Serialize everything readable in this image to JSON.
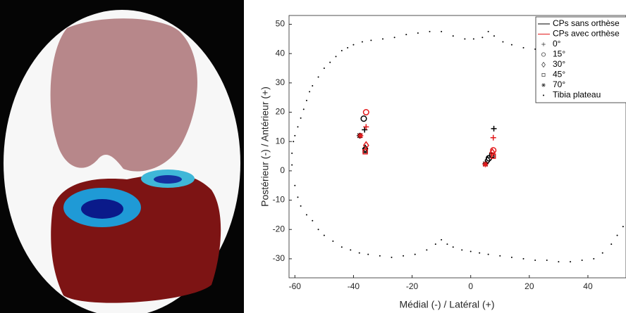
{
  "chart_data": {
    "type": "scatter",
    "xlabel": "Médial (-) / Latéral (+)",
    "ylabel": "Postérieur (-) / Antérieur (+)",
    "xlim": [
      -62,
      53
    ],
    "ylim": [
      -36.5,
      53
    ],
    "xticks": [
      -60,
      -40,
      -20,
      0,
      20,
      40
    ],
    "yticks": [
      -30,
      -20,
      -10,
      0,
      10,
      20,
      30,
      40,
      50
    ],
    "legend": "upper right",
    "markers": [
      {
        "name": "0°",
        "symbol": "plus"
      },
      {
        "name": "15°",
        "symbol": "circle"
      },
      {
        "name": "30°",
        "symbol": "diamond"
      },
      {
        "name": "45°",
        "symbol": "square"
      },
      {
        "name": "70°",
        "symbol": "star"
      }
    ],
    "series": [
      {
        "name": "CPs sans orthèse",
        "color": "#000000",
        "x": [
          [
            -36.2,
            7.9
          ],
          [
            -36.5,
            6.2
          ],
          [
            -36,
            5.8
          ],
          [
            -36,
            7.2
          ],
          [
            -37.9,
            5
          ]
        ],
        "y": [
          [
            14,
            14.4
          ],
          [
            17.8,
            4.3
          ],
          [
            7.5,
            3.6
          ],
          [
            7,
            5.3
          ],
          [
            12,
            2.4
          ]
        ]
      },
      {
        "name": "CPs avec orthèse",
        "color": "#e31a1c",
        "x": [
          [
            -35.7,
            7.7
          ],
          [
            -35.7,
            7.7
          ],
          [
            -35.7,
            7.4
          ],
          [
            -36,
            7.7
          ],
          [
            -37.6,
            5
          ]
        ],
        "y": [
          [
            15,
            11.3
          ],
          [
            20,
            7
          ],
          [
            8.7,
            6.2
          ],
          [
            6.5,
            5
          ],
          [
            12,
            2.2
          ]
        ]
      }
    ],
    "tibia": {
      "name": "Tibia plateau",
      "color": "#000000",
      "x": [
        -61,
        -60.5,
        -60,
        -59,
        -58,
        -57,
        -56,
        -55,
        -54,
        -52,
        -50,
        -48,
        -46,
        -44,
        -42,
        -40,
        -37,
        -34,
        -30,
        -26,
        -22,
        -18,
        -14,
        -10,
        -6,
        -2,
        1,
        4,
        6,
        8,
        11,
        14,
        18,
        22,
        26,
        30,
        34,
        38,
        42,
        46,
        50,
        52,
        -61,
        -60,
        -59,
        -58,
        -56,
        -54,
        -52,
        -50,
        -47,
        -44,
        -41,
        -38,
        -35,
        -31,
        -27,
        -23,
        -19,
        -15,
        -12,
        -10,
        -8,
        -6,
        -3,
        0,
        3,
        6,
        10,
        14,
        18,
        22,
        26,
        30,
        34,
        38,
        42,
        45,
        48,
        50,
        52
      ],
      "y": [
        6,
        10,
        12,
        15,
        18,
        21,
        24,
        27,
        29,
        32,
        35,
        37,
        39,
        41,
        42,
        43,
        44,
        44.5,
        45,
        45.5,
        46.5,
        47,
        47.5,
        47.5,
        46,
        45,
        45,
        45.5,
        47.5,
        46,
        44,
        43,
        42,
        41.5,
        41,
        40,
        39,
        38,
        36,
        33,
        30,
        27,
        2,
        -5,
        -9,
        -12,
        -15,
        -17,
        -20,
        -22,
        -24,
        -26,
        -27,
        -28,
        -28.5,
        -29,
        -29.5,
        -29,
        -28.5,
        -27,
        -25,
        -23.5,
        -25,
        -26,
        -27,
        -27.5,
        -28,
        -28.5,
        -29,
        -29.5,
        -30,
        -30.5,
        -30.5,
        -31,
        -31,
        -30.5,
        -30,
        -28,
        -25,
        -22,
        -19
      ]
    }
  }
}
